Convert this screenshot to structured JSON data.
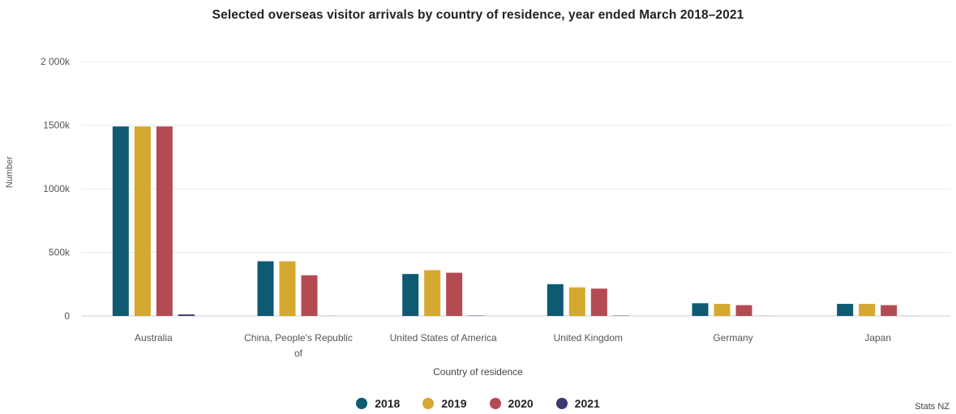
{
  "chart_data": {
    "type": "bar",
    "title": "Selected overseas visitor arrivals by country of residence, year ended March 2018–2021",
    "xlabel": "Country of residence",
    "ylabel": "Number",
    "source": "Stats NZ",
    "categories": [
      [
        "Australia"
      ],
      [
        "China, People's Republic",
        "of"
      ],
      [
        "United States of America"
      ],
      [
        "United Kingdom"
      ],
      [
        "Germany"
      ],
      [
        "Japan"
      ]
    ],
    "category_names": [
      "Australia",
      "China, People's Republic of",
      "United States of America",
      "United Kingdom",
      "Germany",
      "Japan"
    ],
    "y_ticks": [
      {
        "value": 0,
        "label": "0"
      },
      {
        "value": 500000,
        "label": "500k"
      },
      {
        "value": 1000000,
        "label": "1000k"
      },
      {
        "value": 1500000,
        "label": "1500k"
      },
      {
        "value": 2000000,
        "label": "2 000k"
      }
    ],
    "ylim": [
      0,
      2000000
    ],
    "grid": true,
    "legend_position": "bottom",
    "series": [
      {
        "name": "2018",
        "color": "#0e5a73",
        "values": [
          1490000,
          430000,
          330000,
          250000,
          100000,
          95000
        ]
      },
      {
        "name": "2019",
        "color": "#d5a92f",
        "values": [
          1490000,
          430000,
          360000,
          225000,
          95000,
          95000
        ]
      },
      {
        "name": "2020",
        "color": "#b54b52",
        "values": [
          1490000,
          320000,
          340000,
          215000,
          85000,
          85000
        ]
      },
      {
        "name": "2021",
        "color": "#3a3a6e",
        "values": [
          12000,
          500,
          3000,
          2500,
          500,
          300
        ]
      }
    ]
  }
}
